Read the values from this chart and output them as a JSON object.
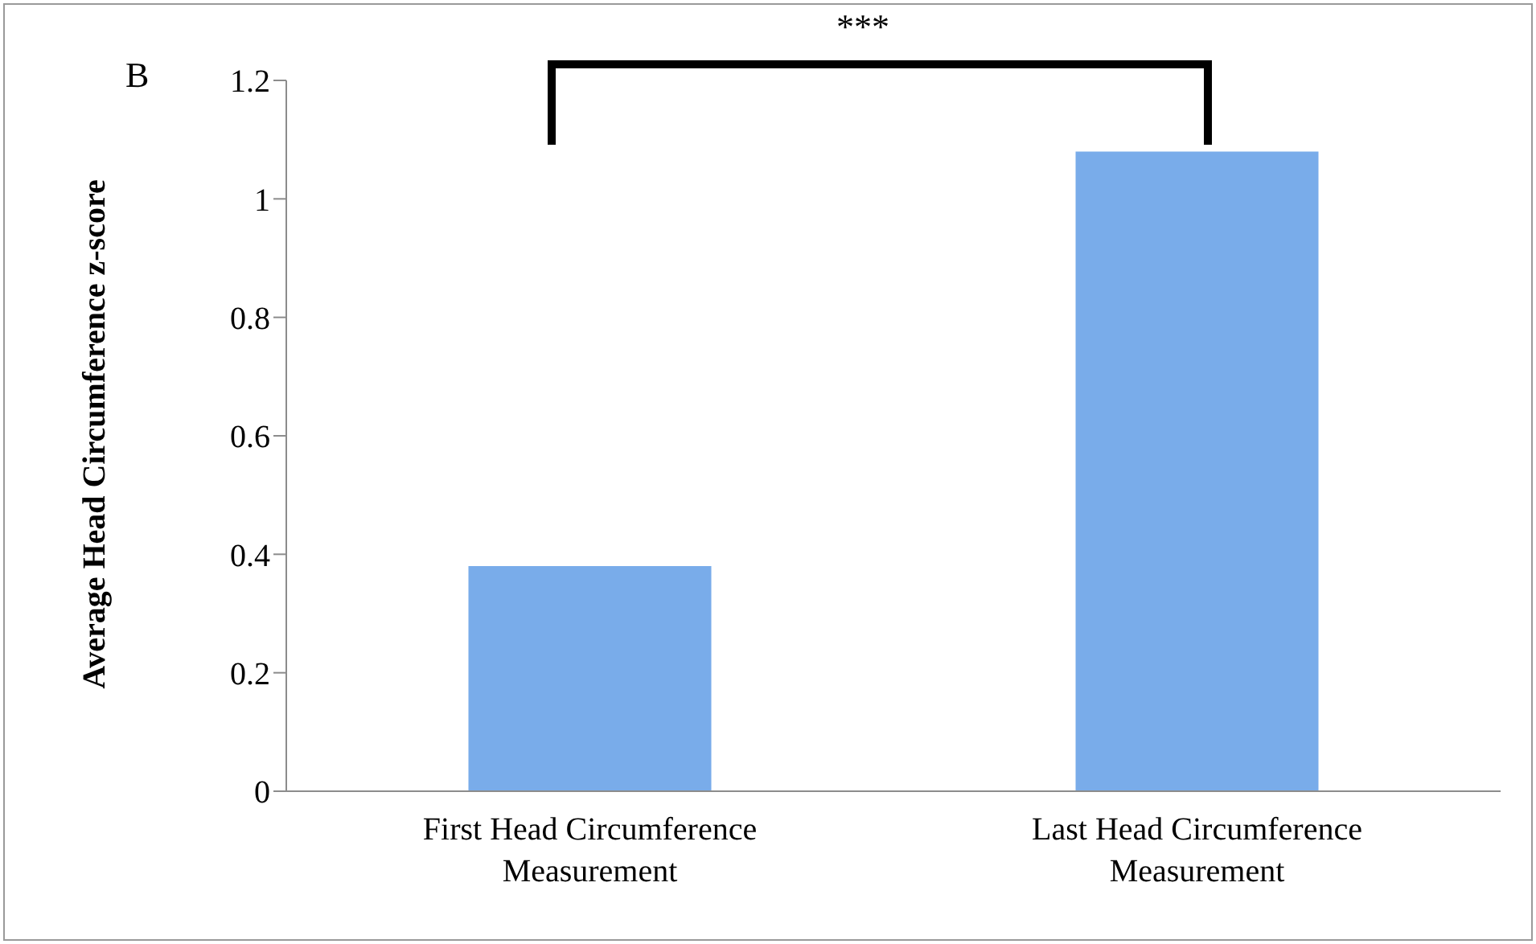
{
  "chart_data": {
    "type": "bar",
    "ylabel": "Average Head Circumference z-score",
    "categories": [
      "First Head Circumference Measurement",
      "Last Head Circumference Measurement"
    ],
    "values": [
      0.38,
      1.08
    ],
    "color": "#79acea",
    "ylim": [
      0,
      1.2
    ],
    "yticks": [
      0,
      0.2,
      0.4,
      0.6,
      0.8,
      1,
      1.2
    ],
    "grid": false,
    "legend": false,
    "annotations": [
      "B",
      "***"
    ]
  }
}
